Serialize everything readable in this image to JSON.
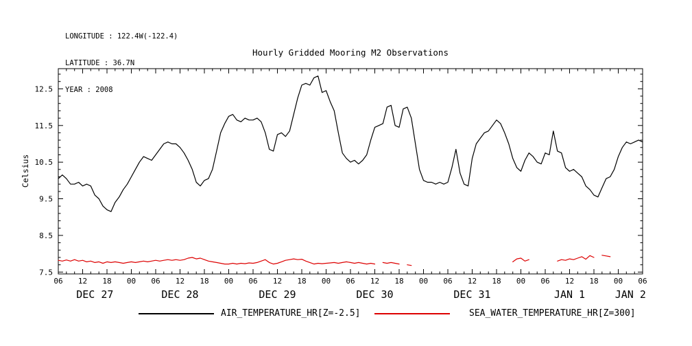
{
  "header": {
    "longitude": "LONGITUDE : 122.4W(-122.4)",
    "latitude": "LATITUDE : 36.7N",
    "year": "YEAR : 2008"
  },
  "chart_data": {
    "type": "line",
    "title": "Hourly Gridded Mooring M2 Observations",
    "ylabel": "Celsius",
    "xlabel": "",
    "ylim": [
      7.45,
      13.05
    ],
    "yticks": [
      7.5,
      8.5,
      9.5,
      10.5,
      11.5,
      12.5
    ],
    "y_minor_step": 0.2,
    "x_start_hour": 6,
    "x_end_hour": 150,
    "x_major_step": 6,
    "x_minor_step": 2,
    "grid": false,
    "legend_position": "bottom",
    "x_ticks": [
      {
        "hour": 6,
        "label": "06"
      },
      {
        "hour": 12,
        "label": "12"
      },
      {
        "hour": 18,
        "label": "18"
      },
      {
        "hour": 24,
        "label": "00"
      },
      {
        "hour": 30,
        "label": "06"
      },
      {
        "hour": 36,
        "label": "12"
      },
      {
        "hour": 42,
        "label": "18"
      },
      {
        "hour": 48,
        "label": "00"
      },
      {
        "hour": 54,
        "label": "06"
      },
      {
        "hour": 60,
        "label": "12"
      },
      {
        "hour": 66,
        "label": "18"
      },
      {
        "hour": 72,
        "label": "00"
      },
      {
        "hour": 78,
        "label": "06"
      },
      {
        "hour": 84,
        "label": "12"
      },
      {
        "hour": 90,
        "label": "18"
      },
      {
        "hour": 96,
        "label": "00"
      },
      {
        "hour": 102,
        "label": "06"
      },
      {
        "hour": 108,
        "label": "12"
      },
      {
        "hour": 114,
        "label": "18"
      },
      {
        "hour": 120,
        "label": "00"
      },
      {
        "hour": 126,
        "label": "06"
      },
      {
        "hour": 132,
        "label": "12"
      },
      {
        "hour": 138,
        "label": "18"
      },
      {
        "hour": 144,
        "label": "00"
      },
      {
        "hour": 150,
        "label": "06"
      }
    ],
    "date_labels": [
      {
        "hour": 15,
        "label": "DEC 27"
      },
      {
        "hour": 36,
        "label": "DEC 28"
      },
      {
        "hour": 60,
        "label": "DEC 29"
      },
      {
        "hour": 84,
        "label": "DEC 30"
      },
      {
        "hour": 108,
        "label": "DEC 31"
      },
      {
        "hour": 132,
        "label": "JAN 1"
      },
      {
        "hour": 147,
        "label": "JAN 2"
      }
    ],
    "series": [
      {
        "name": "AIR_TEMPERATURE_HR[Z=-2.5]",
        "color": "#000000",
        "unit": "Celsius",
        "values": [
          10.05,
          10.15,
          10.05,
          9.9,
          9.9,
          9.95,
          9.85,
          9.9,
          9.85,
          9.6,
          9.5,
          9.3,
          9.2,
          9.15,
          9.4,
          9.55,
          9.75,
          9.9,
          10.1,
          10.3,
          10.5,
          10.65,
          10.6,
          10.55,
          10.7,
          10.85,
          11.0,
          11.05,
          11.0,
          11.0,
          10.9,
          10.75,
          10.55,
          10.3,
          9.95,
          9.85,
          10.0,
          10.05,
          10.3,
          10.8,
          11.3,
          11.55,
          11.75,
          11.8,
          11.65,
          11.6,
          11.7,
          11.65,
          11.65,
          11.7,
          11.6,
          11.3,
          10.85,
          10.8,
          11.25,
          11.3,
          11.2,
          11.35,
          11.8,
          12.25,
          12.6,
          12.65,
          12.6,
          12.8,
          12.85,
          12.4,
          12.45,
          12.15,
          11.9,
          11.3,
          10.75,
          10.6,
          10.5,
          10.55,
          10.45,
          10.55,
          10.7,
          11.1,
          11.45,
          11.5,
          11.55,
          12.0,
          12.05,
          11.5,
          11.45,
          11.95,
          12.0,
          11.7,
          11.0,
          10.3,
          10.0,
          9.95,
          9.95,
          9.9,
          9.95,
          9.9,
          9.95,
          10.35,
          10.85,
          10.2,
          9.9,
          9.85,
          10.6,
          11.0,
          11.15,
          11.3,
          11.35,
          11.5,
          11.65,
          11.55,
          11.3,
          11.0,
          10.6,
          10.35,
          10.25,
          10.55,
          10.75,
          10.65,
          10.5,
          10.45,
          10.75,
          10.7,
          11.35,
          10.8,
          10.75,
          10.35,
          10.25,
          10.3,
          10.2,
          10.1,
          9.85,
          9.75,
          9.6,
          9.55,
          9.8,
          10.05,
          10.1,
          10.3,
          10.65,
          10.9,
          11.05,
          11.0,
          11.05,
          11.1,
          11.05
        ]
      },
      {
        "name": "SEA_WATER_TEMPERATURE_HR[Z=300]",
        "color": "#dd0000",
        "unit": "Celsius",
        "values": [
          7.82,
          7.8,
          7.83,
          7.8,
          7.84,
          7.8,
          7.82,
          7.78,
          7.8,
          7.76,
          7.78,
          7.74,
          7.78,
          7.76,
          7.78,
          7.76,
          7.74,
          7.76,
          7.78,
          7.76,
          7.78,
          7.8,
          7.78,
          7.8,
          7.82,
          7.8,
          7.82,
          7.84,
          7.82,
          7.84,
          7.82,
          7.84,
          7.88,
          7.9,
          7.86,
          7.88,
          7.84,
          7.8,
          7.78,
          7.76,
          7.74,
          7.72,
          7.72,
          7.74,
          7.72,
          7.74,
          7.73,
          7.75,
          7.74,
          7.76,
          7.8,
          7.84,
          7.76,
          7.72,
          7.74,
          7.78,
          7.82,
          7.84,
          7.86,
          7.84,
          7.85,
          7.8,
          7.76,
          7.72,
          7.74,
          7.73,
          7.74,
          7.75,
          7.76,
          7.74,
          7.76,
          7.78,
          7.76,
          7.74,
          7.76,
          7.74,
          7.72,
          7.74,
          7.72,
          null,
          7.76,
          7.74,
          7.76,
          7.74,
          7.72,
          null,
          7.7,
          7.68,
          null,
          null,
          null,
          null,
          null,
          null,
          null,
          null,
          null,
          null,
          null,
          null,
          null,
          null,
          null,
          null,
          null,
          null,
          null,
          null,
          null,
          null,
          null,
          null,
          7.78,
          7.86,
          7.88,
          7.8,
          7.84,
          null,
          null,
          null,
          null,
          null,
          null,
          7.8,
          7.84,
          7.82,
          7.86,
          7.84,
          7.88,
          7.92,
          7.85,
          7.95,
          7.9,
          null,
          7.96,
          7.94,
          7.92,
          null,
          null,
          null,
          null,
          null,
          null,
          null,
          null
        ]
      }
    ]
  }
}
